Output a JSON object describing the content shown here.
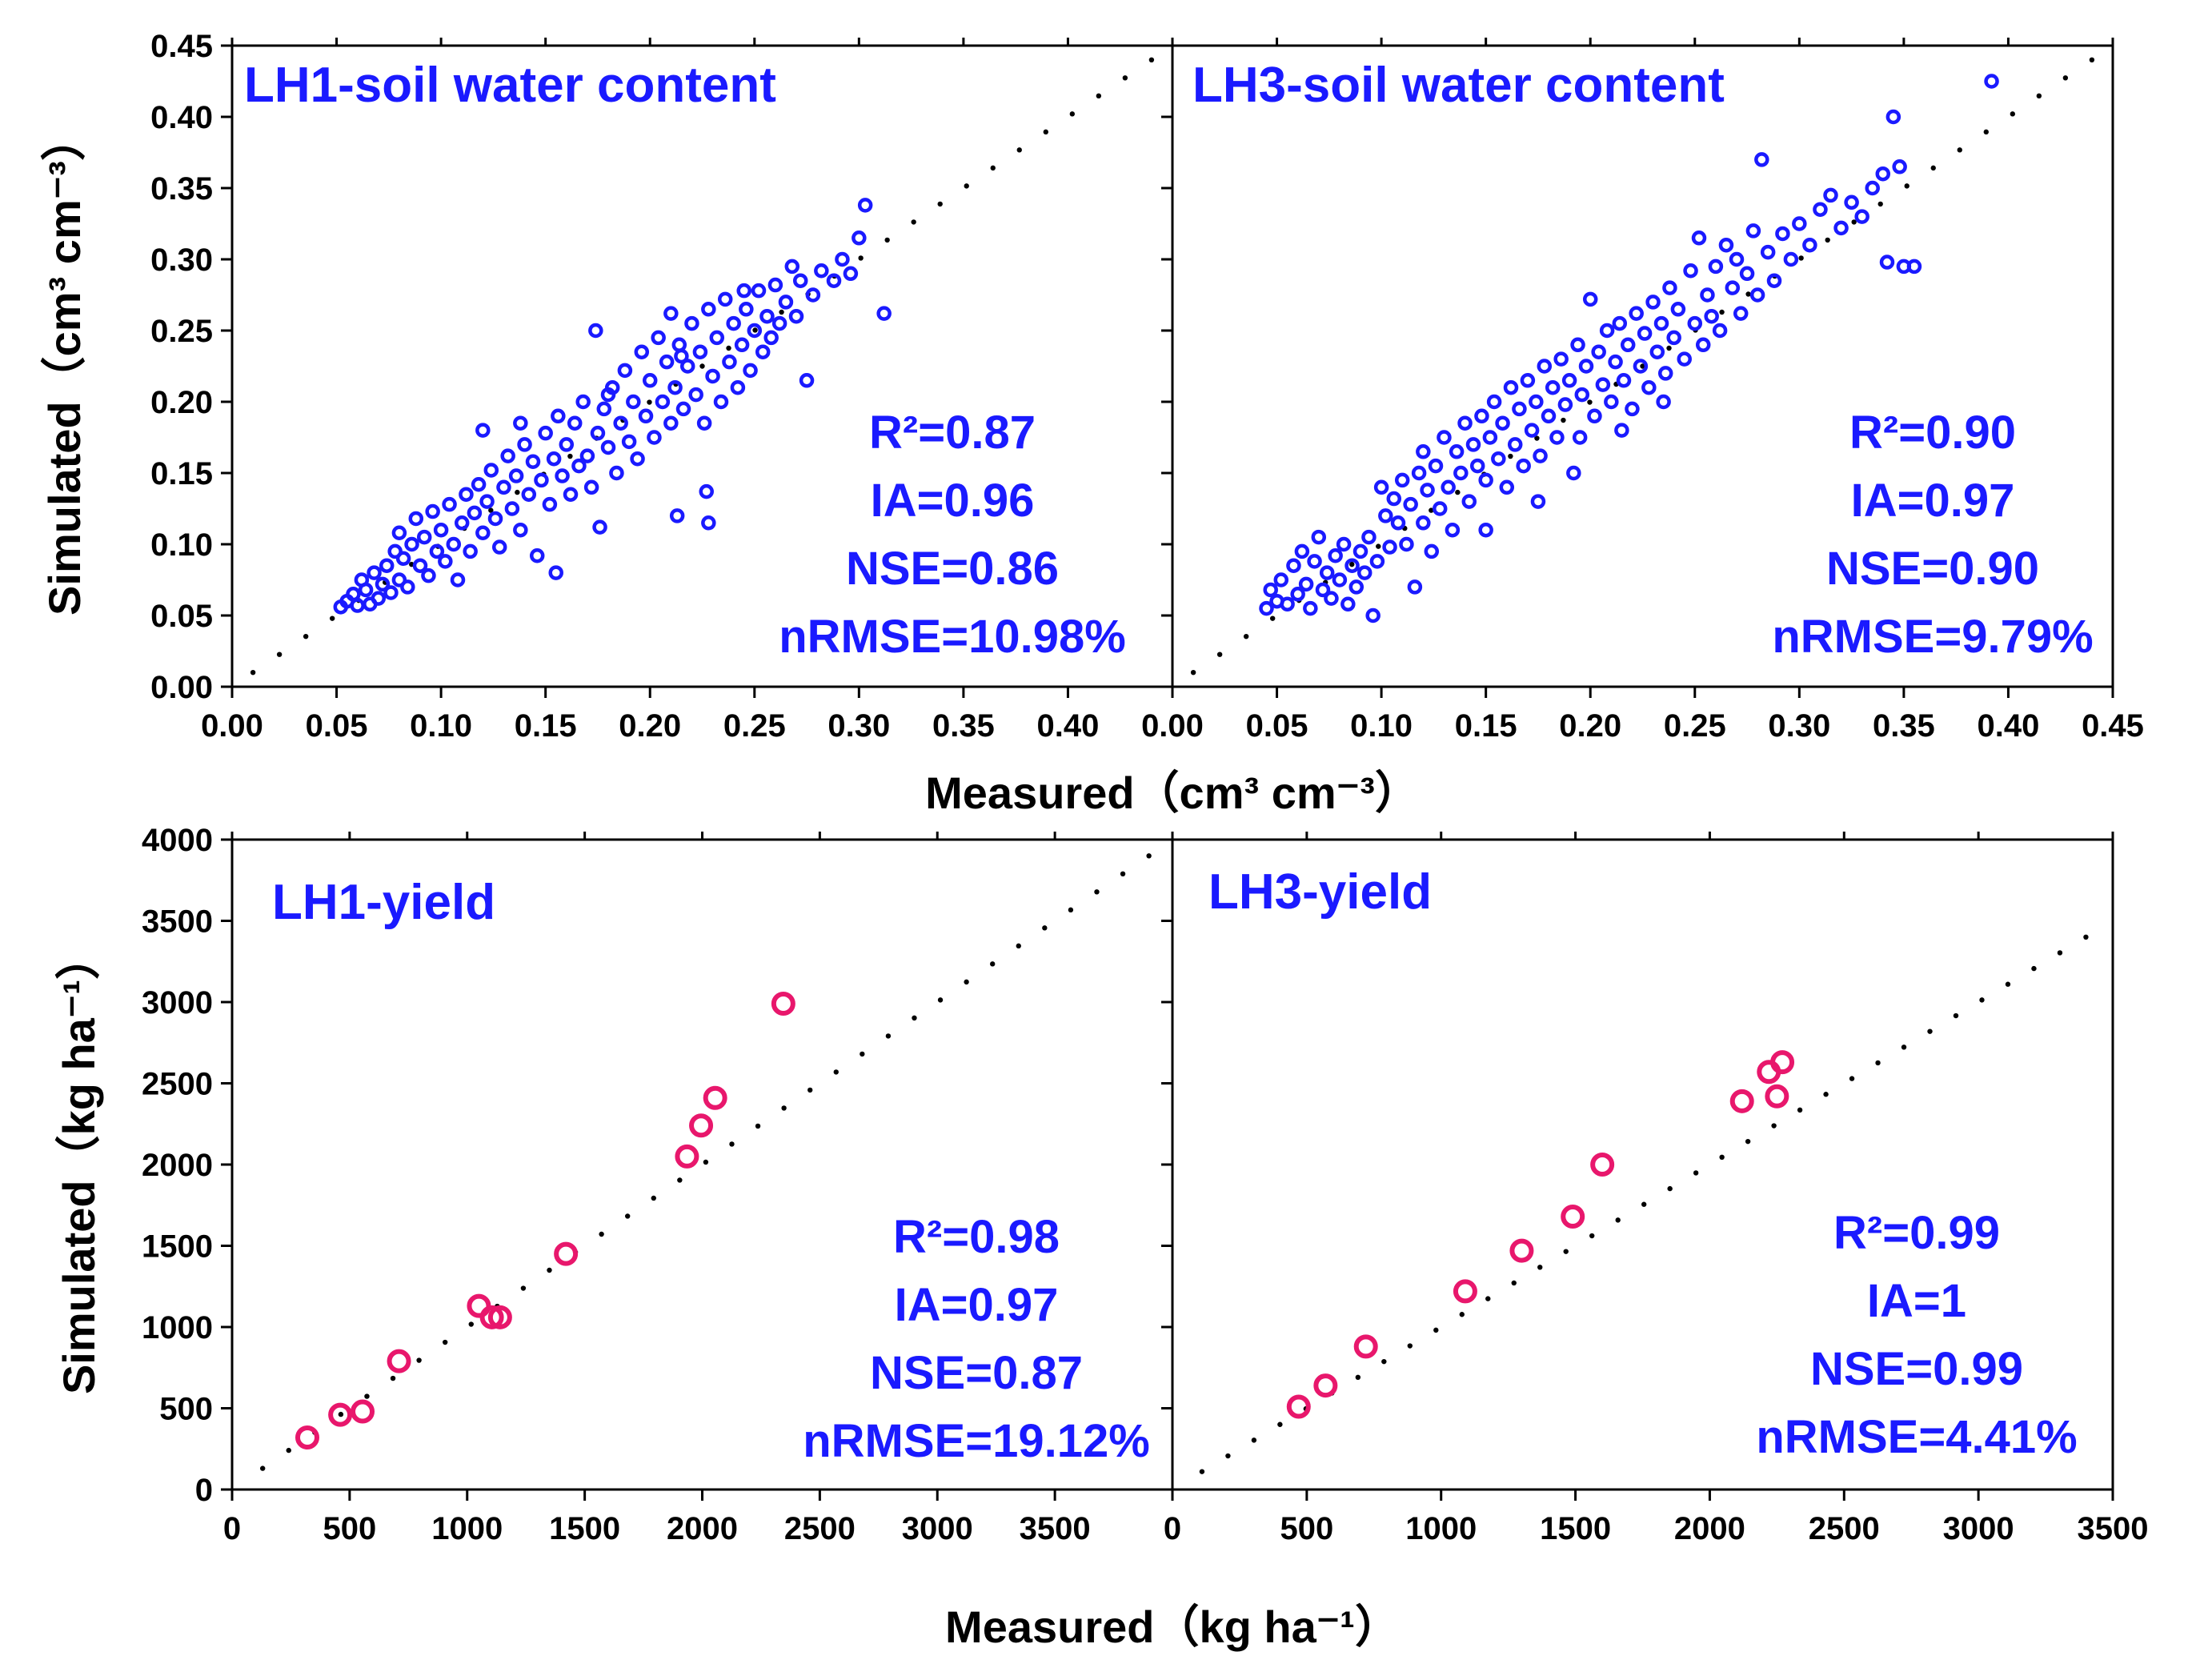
{
  "colors": {
    "swc_points": "#1a1aff",
    "yield_points": "#e8176c",
    "stats_text": "#1a1aff",
    "panel_title": "#1a1aff",
    "one_to_one_line": "#000000"
  },
  "axes": {
    "top_ylabel": "Simulated（cm³ cm⁻³）",
    "top_xlabel": "Measured（cm³ cm⁻³）",
    "bottom_ylabel": "Simulated（kg ha⁻¹）",
    "bottom_xlabel": "Measured（kg ha⁻¹）"
  },
  "chart_data": [
    {
      "id": "lh1_swc",
      "type": "scatter",
      "title": "LH1-soil water content",
      "stats": [
        "R²=0.87",
        "IA=0.96",
        "NSE=0.86",
        "nRMSE=10.98%"
      ],
      "xlim": [
        0,
        0.45
      ],
      "ylim": [
        0,
        0.45
      ],
      "xticks": [
        "0.00",
        "0.05",
        "0.10",
        "0.15",
        "0.20",
        "0.25",
        "0.30",
        "0.35",
        "0.40"
      ],
      "yticks": [
        "0.00",
        "0.05",
        "0.10",
        "0.15",
        "0.20",
        "0.25",
        "0.30",
        "0.35",
        "0.40",
        "0.45"
      ],
      "one_to_one": [
        0.01,
        0.44
      ],
      "points": [
        [
          0.052,
          0.056
        ],
        [
          0.055,
          0.06
        ],
        [
          0.058,
          0.065
        ],
        [
          0.06,
          0.057
        ],
        [
          0.062,
          0.075
        ],
        [
          0.064,
          0.068
        ],
        [
          0.066,
          0.058
        ],
        [
          0.068,
          0.08
        ],
        [
          0.07,
          0.062
        ],
        [
          0.072,
          0.072
        ],
        [
          0.074,
          0.085
        ],
        [
          0.076,
          0.066
        ],
        [
          0.078,
          0.095
        ],
        [
          0.08,
          0.075
        ],
        [
          0.08,
          0.108
        ],
        [
          0.082,
          0.09
        ],
        [
          0.084,
          0.07
        ],
        [
          0.086,
          0.1
        ],
        [
          0.088,
          0.118
        ],
        [
          0.09,
          0.085
        ],
        [
          0.092,
          0.105
        ],
        [
          0.094,
          0.078
        ],
        [
          0.096,
          0.123
        ],
        [
          0.098,
          0.095
        ],
        [
          0.1,
          0.11
        ],
        [
          0.102,
          0.088
        ],
        [
          0.104,
          0.128
        ],
        [
          0.106,
          0.1
        ],
        [
          0.108,
          0.075
        ],
        [
          0.11,
          0.115
        ],
        [
          0.112,
          0.135
        ],
        [
          0.114,
          0.095
        ],
        [
          0.116,
          0.122
        ],
        [
          0.118,
          0.142
        ],
        [
          0.12,
          0.108
        ],
        [
          0.12,
          0.18
        ],
        [
          0.122,
          0.13
        ],
        [
          0.124,
          0.152
        ],
        [
          0.126,
          0.118
        ],
        [
          0.128,
          0.098
        ],
        [
          0.13,
          0.14
        ],
        [
          0.132,
          0.162
        ],
        [
          0.134,
          0.125
        ],
        [
          0.136,
          0.148
        ],
        [
          0.138,
          0.11
        ],
        [
          0.14,
          0.17
        ],
        [
          0.142,
          0.135
        ],
        [
          0.144,
          0.158
        ],
        [
          0.146,
          0.092
        ],
        [
          0.148,
          0.145
        ],
        [
          0.15,
          0.178
        ],
        [
          0.152,
          0.128
        ],
        [
          0.154,
          0.16
        ],
        [
          0.155,
          0.08
        ],
        [
          0.156,
          0.19
        ],
        [
          0.158,
          0.148
        ],
        [
          0.16,
          0.17
        ],
        [
          0.162,
          0.135
        ],
        [
          0.164,
          0.185
        ],
        [
          0.166,
          0.155
        ],
        [
          0.168,
          0.2
        ],
        [
          0.17,
          0.162
        ],
        [
          0.172,
          0.14
        ],
        [
          0.174,
          0.25
        ],
        [
          0.175,
          0.178
        ],
        [
          0.176,
          0.112
        ],
        [
          0.178,
          0.195
        ],
        [
          0.18,
          0.168
        ],
        [
          0.182,
          0.21
        ],
        [
          0.184,
          0.15
        ],
        [
          0.186,
          0.185
        ],
        [
          0.188,
          0.222
        ],
        [
          0.19,
          0.172
        ],
        [
          0.192,
          0.2
        ],
        [
          0.194,
          0.16
        ],
        [
          0.196,
          0.235
        ],
        [
          0.198,
          0.19
        ],
        [
          0.2,
          0.215
        ],
        [
          0.202,
          0.175
        ],
        [
          0.204,
          0.245
        ],
        [
          0.206,
          0.2
        ],
        [
          0.208,
          0.228
        ],
        [
          0.21,
          0.185
        ],
        [
          0.21,
          0.262
        ],
        [
          0.212,
          0.21
        ],
        [
          0.213,
          0.12
        ],
        [
          0.214,
          0.24
        ],
        [
          0.216,
          0.195
        ],
        [
          0.218,
          0.225
        ],
        [
          0.22,
          0.255
        ],
        [
          0.222,
          0.205
        ],
        [
          0.224,
          0.235
        ],
        [
          0.226,
          0.185
        ],
        [
          0.227,
          0.137
        ],
        [
          0.228,
          0.115
        ],
        [
          0.228,
          0.265
        ],
        [
          0.23,
          0.218
        ],
        [
          0.232,
          0.245
        ],
        [
          0.234,
          0.2
        ],
        [
          0.236,
          0.272
        ],
        [
          0.238,
          0.228
        ],
        [
          0.24,
          0.255
        ],
        [
          0.242,
          0.21
        ],
        [
          0.244,
          0.24
        ],
        [
          0.246,
          0.265
        ],
        [
          0.248,
          0.222
        ],
        [
          0.25,
          0.25
        ],
        [
          0.252,
          0.278
        ],
        [
          0.254,
          0.235
        ],
        [
          0.256,
          0.26
        ],
        [
          0.258,
          0.245
        ],
        [
          0.26,
          0.282
        ],
        [
          0.262,
          0.255
        ],
        [
          0.265,
          0.27
        ],
        [
          0.268,
          0.295
        ],
        [
          0.27,
          0.26
        ],
        [
          0.272,
          0.285
        ],
        [
          0.275,
          0.215
        ],
        [
          0.278,
          0.275
        ],
        [
          0.282,
          0.292
        ],
        [
          0.288,
          0.285
        ],
        [
          0.292,
          0.3
        ],
        [
          0.296,
          0.29
        ],
        [
          0.3,
          0.315
        ],
        [
          0.303,
          0.338
        ],
        [
          0.312,
          0.262
        ],
        [
          0.138,
          0.185
        ],
        [
          0.18,
          0.205
        ],
        [
          0.215,
          0.232
        ],
        [
          0.245,
          0.278
        ]
      ]
    },
    {
      "id": "lh3_swc",
      "type": "scatter",
      "title": "LH3-soil water content",
      "stats": [
        "R²=0.90",
        "IA=0.97",
        "NSE=0.90",
        "nRMSE=9.79%"
      ],
      "xlim": [
        0,
        0.45
      ],
      "ylim": [
        0,
        0.45
      ],
      "xticks": [
        "0.00",
        "0.05",
        "0.10",
        "0.15",
        "0.20",
        "0.25",
        "0.30",
        "0.35",
        "0.40",
        "0.45"
      ],
      "one_to_one": [
        0.01,
        0.44
      ],
      "points": [
        [
          0.045,
          0.055
        ],
        [
          0.047,
          0.068
        ],
        [
          0.05,
          0.06
        ],
        [
          0.052,
          0.075
        ],
        [
          0.055,
          0.058
        ],
        [
          0.058,
          0.085
        ],
        [
          0.06,
          0.065
        ],
        [
          0.062,
          0.095
        ],
        [
          0.064,
          0.072
        ],
        [
          0.066,
          0.055
        ],
        [
          0.068,
          0.088
        ],
        [
          0.07,
          0.105
        ],
        [
          0.072,
          0.068
        ],
        [
          0.074,
          0.08
        ],
        [
          0.076,
          0.062
        ],
        [
          0.078,
          0.092
        ],
        [
          0.08,
          0.075
        ],
        [
          0.082,
          0.1
        ],
        [
          0.084,
          0.058
        ],
        [
          0.086,
          0.085
        ],
        [
          0.088,
          0.07
        ],
        [
          0.09,
          0.095
        ],
        [
          0.092,
          0.08
        ],
        [
          0.094,
          0.105
        ],
        [
          0.096,
          0.05
        ],
        [
          0.098,
          0.088
        ],
        [
          0.1,
          0.14
        ],
        [
          0.102,
          0.12
        ],
        [
          0.104,
          0.098
        ],
        [
          0.106,
          0.132
        ],
        [
          0.108,
          0.115
        ],
        [
          0.11,
          0.145
        ],
        [
          0.112,
          0.1
        ],
        [
          0.114,
          0.128
        ],
        [
          0.116,
          0.07
        ],
        [
          0.118,
          0.15
        ],
        [
          0.12,
          0.115
        ],
        [
          0.12,
          0.165
        ],
        [
          0.122,
          0.138
        ],
        [
          0.124,
          0.095
        ],
        [
          0.126,
          0.155
        ],
        [
          0.128,
          0.125
        ],
        [
          0.13,
          0.175
        ],
        [
          0.132,
          0.14
        ],
        [
          0.134,
          0.11
        ],
        [
          0.136,
          0.165
        ],
        [
          0.138,
          0.15
        ],
        [
          0.14,
          0.185
        ],
        [
          0.142,
          0.13
        ],
        [
          0.144,
          0.17
        ],
        [
          0.146,
          0.155
        ],
        [
          0.148,
          0.19
        ],
        [
          0.15,
          0.145
        ],
        [
          0.152,
          0.175
        ],
        [
          0.154,
          0.2
        ],
        [
          0.156,
          0.16
        ],
        [
          0.158,
          0.185
        ],
        [
          0.16,
          0.14
        ],
        [
          0.162,
          0.21
        ],
        [
          0.164,
          0.17
        ],
        [
          0.166,
          0.195
        ],
        [
          0.168,
          0.155
        ],
        [
          0.17,
          0.215
        ],
        [
          0.172,
          0.18
        ],
        [
          0.174,
          0.2
        ],
        [
          0.176,
          0.162
        ],
        [
          0.178,
          0.225
        ],
        [
          0.18,
          0.19
        ],
        [
          0.182,
          0.21
        ],
        [
          0.184,
          0.175
        ],
        [
          0.186,
          0.23
        ],
        [
          0.188,
          0.198
        ],
        [
          0.19,
          0.215
        ],
        [
          0.192,
          0.15
        ],
        [
          0.194,
          0.24
        ],
        [
          0.196,
          0.205
        ],
        [
          0.198,
          0.225
        ],
        [
          0.2,
          0.272
        ],
        [
          0.202,
          0.19
        ],
        [
          0.204,
          0.235
        ],
        [
          0.206,
          0.212
        ],
        [
          0.208,
          0.25
        ],
        [
          0.21,
          0.2
        ],
        [
          0.212,
          0.228
        ],
        [
          0.214,
          0.255
        ],
        [
          0.216,
          0.215
        ],
        [
          0.218,
          0.24
        ],
        [
          0.22,
          0.195
        ],
        [
          0.222,
          0.262
        ],
        [
          0.224,
          0.225
        ],
        [
          0.226,
          0.248
        ],
        [
          0.228,
          0.21
        ],
        [
          0.23,
          0.27
        ],
        [
          0.232,
          0.235
        ],
        [
          0.234,
          0.255
        ],
        [
          0.236,
          0.22
        ],
        [
          0.238,
          0.28
        ],
        [
          0.24,
          0.245
        ],
        [
          0.242,
          0.265
        ],
        [
          0.245,
          0.23
        ],
        [
          0.248,
          0.292
        ],
        [
          0.25,
          0.255
        ],
        [
          0.252,
          0.315
        ],
        [
          0.254,
          0.24
        ],
        [
          0.256,
          0.275
        ],
        [
          0.258,
          0.26
        ],
        [
          0.26,
          0.295
        ],
        [
          0.262,
          0.25
        ],
        [
          0.265,
          0.31
        ],
        [
          0.268,
          0.28
        ],
        [
          0.27,
          0.3
        ],
        [
          0.272,
          0.262
        ],
        [
          0.275,
          0.29
        ],
        [
          0.278,
          0.32
        ],
        [
          0.28,
          0.275
        ],
        [
          0.282,
          0.37
        ],
        [
          0.285,
          0.305
        ],
        [
          0.288,
          0.285
        ],
        [
          0.292,
          0.318
        ],
        [
          0.296,
          0.3
        ],
        [
          0.3,
          0.325
        ],
        [
          0.305,
          0.31
        ],
        [
          0.31,
          0.335
        ],
        [
          0.315,
          0.345
        ],
        [
          0.32,
          0.322
        ],
        [
          0.325,
          0.34
        ],
        [
          0.33,
          0.33
        ],
        [
          0.335,
          0.35
        ],
        [
          0.34,
          0.36
        ],
        [
          0.342,
          0.298
        ],
        [
          0.345,
          0.4
        ],
        [
          0.348,
          0.365
        ],
        [
          0.35,
          0.295
        ],
        [
          0.355,
          0.295
        ],
        [
          0.392,
          0.425
        ],
        [
          0.15,
          0.11
        ],
        [
          0.175,
          0.13
        ],
        [
          0.195,
          0.175
        ],
        [
          0.215,
          0.18
        ],
        [
          0.235,
          0.2
        ]
      ]
    },
    {
      "id": "lh1_yield",
      "type": "scatter",
      "title": "LH1-yield",
      "stats": [
        "R²=0.98",
        "IA=0.97",
        "NSE=0.87",
        "nRMSE=19.12%"
      ],
      "xlim": [
        0,
        4000
      ],
      "ylim": [
        0,
        4000
      ],
      "xticks": [
        "0",
        "500",
        "1000",
        "1500",
        "2000",
        "2500",
        "3000",
        "3500"
      ],
      "yticks": [
        "0",
        "500",
        "1000",
        "1500",
        "2000",
        "2500",
        "3000",
        "3500",
        "4000"
      ],
      "one_to_one": [
        130,
        3900
      ],
      "points": [
        [
          320,
          320
        ],
        [
          460,
          460
        ],
        [
          555,
          480
        ],
        [
          710,
          790
        ],
        [
          1050,
          1130
        ],
        [
          1105,
          1060
        ],
        [
          1140,
          1060
        ],
        [
          1420,
          1450
        ],
        [
          1935,
          2050
        ],
        [
          1995,
          2240
        ],
        [
          2055,
          2410
        ],
        [
          2345,
          2990
        ]
      ]
    },
    {
      "id": "lh3_yield",
      "type": "scatter",
      "title": "LH3-yield",
      "stats": [
        "R²=0.99",
        "IA=1",
        "NSE=0.99",
        "nRMSE=4.41%"
      ],
      "xlim": [
        0,
        3500
      ],
      "ylim": [
        0,
        4000
      ],
      "xticks": [
        "0",
        "500",
        "1000",
        "1500",
        "2000",
        "2500",
        "3000",
        "3500"
      ],
      "one_to_one": [
        110,
        3400
      ],
      "points": [
        [
          470,
          510
        ],
        [
          570,
          640
        ],
        [
          720,
          880
        ],
        [
          1090,
          1220
        ],
        [
          1300,
          1470
        ],
        [
          1490,
          1680
        ],
        [
          1600,
          2000
        ],
        [
          2120,
          2390
        ],
        [
          2220,
          2570
        ],
        [
          2250,
          2420
        ],
        [
          2270,
          2630
        ]
      ]
    }
  ]
}
